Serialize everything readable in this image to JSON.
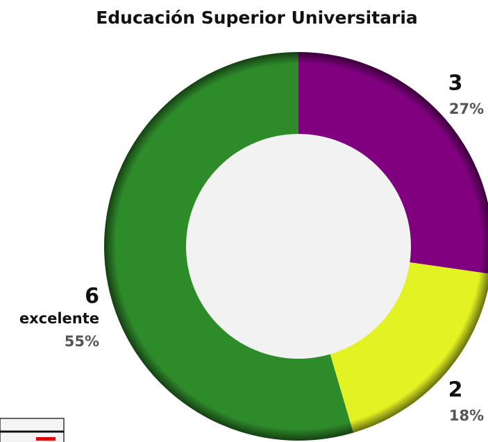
{
  "chart_data": {
    "type": "donut",
    "title": "Educación Superior Universitaria",
    "categories": [
      null,
      null,
      "excelente"
    ],
    "values": [
      3,
      2,
      6
    ],
    "percentages": [
      27,
      18,
      55
    ],
    "percentage_labels": [
      "27%",
      "18%",
      "55%"
    ],
    "colors": [
      "#800080",
      "#e3f223",
      "#2e8b2a"
    ]
  }
}
